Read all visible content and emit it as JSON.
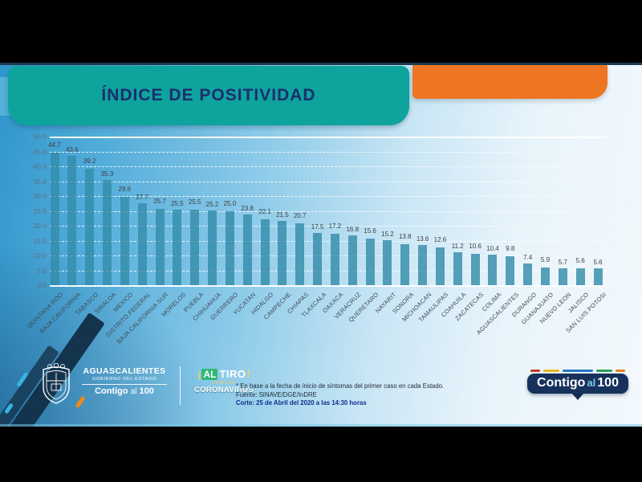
{
  "header": {
    "title": "ÍNDICE DE POSITIVIDAD"
  },
  "chart_data": {
    "type": "bar",
    "title": "ÍNDICE DE POSITIVIDAD",
    "categories": [
      "QUINTANA ROO",
      "BAJA CALIFORNIA",
      "TABASCO",
      "SINALOA",
      "MEXICO",
      "DISTRITO FEDERAL",
      "BAJA CALIFORNIA SUR",
      "MORELOS",
      "PUEBLA",
      "CHIHUAHUA",
      "GUERRERO",
      "YUCATAN",
      "HIDALGO",
      "CAMPECHE",
      "CHIAPAS",
      "TLAXCALA",
      "OAXACA",
      "VERACRUZ",
      "QUERETARO",
      "NAYARIT",
      "SONORA",
      "MICHOACAN",
      "TAMAULIPAS",
      "COAHUILA",
      "ZACATECAS",
      "COLIMA",
      "AGUASCALIENTES",
      "DURANGO",
      "GUANAJUATO",
      "NUEVO LEON",
      "JALISCO",
      "SAN LUIS POTOSI"
    ],
    "values": [
      44.7,
      43.6,
      39.2,
      35.3,
      29.6,
      27.7,
      25.7,
      25.5,
      25.5,
      25.2,
      25.0,
      23.8,
      22.1,
      21.5,
      20.7,
      17.5,
      17.2,
      16.8,
      15.6,
      15.2,
      13.8,
      13.6,
      12.6,
      11.2,
      10.6,
      10.4,
      9.8,
      7.4,
      5.9,
      5.7,
      5.6,
      5.6
    ],
    "xlabel": "",
    "ylabel": "",
    "ylim": [
      0,
      50
    ],
    "ytick_step": 5,
    "grid": true,
    "legend_position": "none",
    "bar_color": "rgba(52,140,170,0.82)"
  },
  "footer": {
    "note": "* En base a la fecha de inicio de síntomas del primer caso en cada Estado.",
    "source": "Fuente: SINAVE/DGE/InDRE",
    "cutoff": "Corte: 25 de Abril del 2020 a las 14:30 horas"
  },
  "logos": {
    "state_government": {
      "name": "AGUASCALIENTES",
      "subtitle": "GOBIERNO DEL ESTADO",
      "slogan_contigo": "Contigo",
      "slogan_al": "al",
      "slogan_100": "100"
    },
    "al_tiro": {
      "excl_open": "¡",
      "al": "AL",
      "tiro": "TIRO",
      "excl_close": "!",
      "contra": "CONTRA",
      "coronavirus": "CORONAVIRUS"
    },
    "contigo_bubble": {
      "contigo": "Contigo",
      "al": "al",
      "hundred": "100"
    }
  },
  "colors": {
    "teal_header": "#0EA39D",
    "orange_bar": "#EE7623",
    "title_text": "#1C2E6E",
    "navy_bubble": "#16325C",
    "bubble_dash_colors": [
      "#c0392b",
      "#e8b820",
      "#2577c8",
      "#2fa05a",
      "#e67e22"
    ],
    "bubble_dash_widths": [
      12,
      20,
      38,
      20,
      12
    ]
  }
}
